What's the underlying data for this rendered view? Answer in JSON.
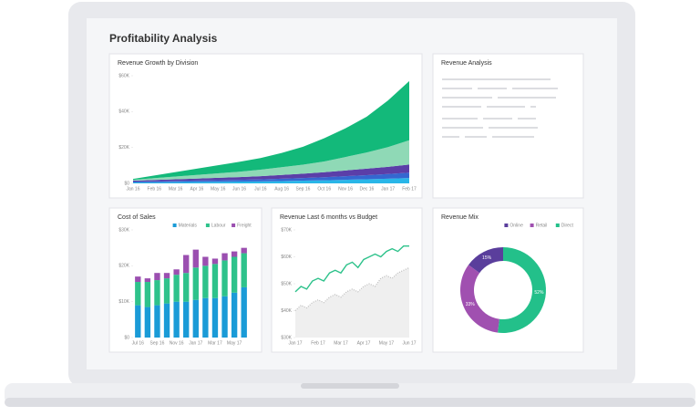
{
  "header": {
    "title": "Profitability Analysis"
  },
  "panels": [
    {
      "title": "Revenue Analysis"
    }
  ],
  "chart_data": [
    {
      "type": "area",
      "stacked": true,
      "title": "Revenue Growth by Division",
      "categories": [
        "Jan 16",
        "Feb 16",
        "Mar 16",
        "Apr 16",
        "May 16",
        "Jun 16",
        "Jul 16",
        "Aug 16",
        "Sep 16",
        "Oct 16",
        "Nov 16",
        "Dec 16",
        "Jan 17",
        "Feb 17"
      ],
      "series": [
        {
          "color": "#29b6e8",
          "values": [
            500,
            600,
            700,
            800,
            900,
            1000,
            1100,
            1300,
            1500,
            1700,
            2000,
            2300,
            2600,
            3000
          ]
        },
        {
          "color": "#3567d0",
          "values": [
            500,
            600,
            700,
            800,
            900,
            1000,
            1100,
            1300,
            1500,
            1700,
            2000,
            2300,
            2600,
            3000
          ]
        },
        {
          "color": "#5b3ea8",
          "values": [
            500,
            700,
            900,
            1100,
            1300,
            1500,
            1800,
            2100,
            2400,
            2800,
            3200,
            3600,
            4000,
            4500
          ]
        },
        {
          "color": "#8fd9b6",
          "values": [
            500,
            1000,
            1500,
            2000,
            2500,
            3000,
            3600,
            4300,
            5000,
            6000,
            7500,
            9000,
            11000,
            13500
          ]
        },
        {
          "color": "#13b97a",
          "values": [
            500,
            1500,
            2500,
            3500,
            4500,
            5500,
            6500,
            8000,
            10000,
            13000,
            16000,
            20000,
            26000,
            33000
          ]
        }
      ],
      "ylim": [
        0,
        60000
      ],
      "yticks": [
        {
          "value": 0,
          "label": "$0"
        },
        {
          "value": 20000,
          "label": "$20K"
        },
        {
          "value": 40000,
          "label": "$40K"
        },
        {
          "value": 60000,
          "label": "$60K"
        }
      ]
    },
    {
      "type": "bar",
      "stacked": true,
      "title": "Cost of Sales",
      "legend": "top-right",
      "categories": [
        "Jul 16",
        null,
        "Sep 16",
        null,
        "Nov 16",
        null,
        "Jan 17",
        null,
        "Mar 17",
        null,
        "May 17",
        null
      ],
      "series": [
        {
          "name": "Materials",
          "color": "#1a9bd7",
          "values": [
            9000,
            8500,
            9000,
            9500,
            10000,
            10000,
            10500,
            11000,
            11000,
            11500,
            12500,
            14000
          ]
        },
        {
          "name": "Labour",
          "color": "#2ec28b",
          "values": [
            6500,
            7000,
            7000,
            7000,
            7500,
            8000,
            9000,
            9000,
            9500,
            10000,
            10000,
            9500
          ]
        },
        {
          "name": "Freight",
          "color": "#9b4fb0",
          "values": [
            1500,
            1000,
            2000,
            1500,
            1500,
            5000,
            5000,
            2500,
            1500,
            2000,
            1500,
            1500
          ]
        }
      ],
      "ylim": [
        0,
        30000
      ],
      "yticks": [
        {
          "value": 0,
          "label": "$0"
        },
        {
          "value": 10000,
          "label": "$10K"
        },
        {
          "value": 20000,
          "label": "$20K"
        },
        {
          "value": 30000,
          "label": "$30K"
        }
      ]
    },
    {
      "type": "line",
      "title": "Revenue Last 6 months vs Budget",
      "categories": [
        "Jan 17",
        null,
        null,
        null,
        "Feb 17",
        null,
        null,
        null,
        "Mar 17",
        null,
        null,
        null,
        "Apr 17",
        null,
        null,
        null,
        "May 17",
        null,
        null,
        null,
        "Jun 17"
      ],
      "series": [
        {
          "color": "#d2d2d2",
          "style": "area",
          "values": [
            40000,
            42000,
            41000,
            43000,
            44000,
            43000,
            45000,
            46000,
            45000,
            47000,
            48000,
            47000,
            49000,
            50000,
            49000,
            52000,
            53000,
            52000,
            54000,
            55000,
            56000
          ]
        },
        {
          "color": "#2ec28b",
          "style": "line",
          "values": [
            47000,
            49000,
            48000,
            51000,
            52000,
            51000,
            54000,
            55000,
            54000,
            57000,
            58000,
            56000,
            59000,
            60000,
            61000,
            60000,
            62000,
            63000,
            62000,
            64000,
            64000
          ]
        }
      ],
      "ylim": [
        30000,
        70000
      ],
      "yticks": [
        {
          "value": 30000,
          "label": "$30K"
        },
        {
          "value": 40000,
          "label": "$40K"
        },
        {
          "value": 50000,
          "label": "$50K"
        },
        {
          "value": 60000,
          "label": "$60K"
        },
        {
          "value": 70000,
          "label": "$70K"
        }
      ]
    },
    {
      "type": "pie",
      "donut": true,
      "title": "Revenue Mix",
      "legend": "top-right",
      "categories": [
        "Online",
        "Retail",
        "Direct"
      ],
      "colors": [
        "#5a3e9c",
        "#a050b0",
        "#23c08a"
      ],
      "values": [
        15,
        33,
        52
      ],
      "value_labels": [
        "15%",
        "33%",
        "52%"
      ]
    }
  ]
}
